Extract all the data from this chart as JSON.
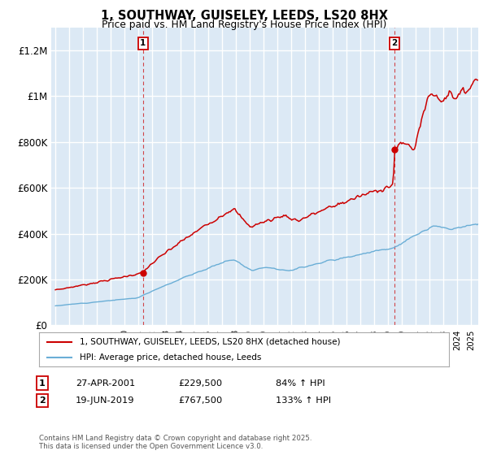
{
  "title_line1": "1, SOUTHWAY, GUISELEY, LEEDS, LS20 8HX",
  "title_line2": "Price paid vs. HM Land Registry's House Price Index (HPI)",
  "ylim": [
    0,
    1300000
  ],
  "yticks": [
    0,
    200000,
    400000,
    600000,
    800000,
    1000000,
    1200000
  ],
  "ytick_labels": [
    "£0",
    "£200K",
    "£400K",
    "£600K",
    "£800K",
    "£1M",
    "£1.2M"
  ],
  "plot_bg_color": "#dce9f5",
  "grid_color": "#ffffff",
  "red_color": "#cc0000",
  "blue_color": "#6aaed6",
  "marker1_year": 2001.32,
  "marker1_value": 229500,
  "marker1_label": "1",
  "marker2_year": 2019.46,
  "marker2_value": 767500,
  "marker2_label": "2",
  "annotation1_date": "27-APR-2001",
  "annotation1_price": "£229,500",
  "annotation1_hpi": "84% ↑ HPI",
  "annotation2_date": "19-JUN-2019",
  "annotation2_price": "£767,500",
  "annotation2_hpi": "133% ↑ HPI",
  "legend_label_red": "1, SOUTHWAY, GUISELEY, LEEDS, LS20 8HX (detached house)",
  "legend_label_blue": "HPI: Average price, detached house, Leeds",
  "copyright_text": "Contains HM Land Registry data © Crown copyright and database right 2025.\nThis data is licensed under the Open Government Licence v3.0.",
  "xmin": 1994.7,
  "xmax": 2025.5
}
